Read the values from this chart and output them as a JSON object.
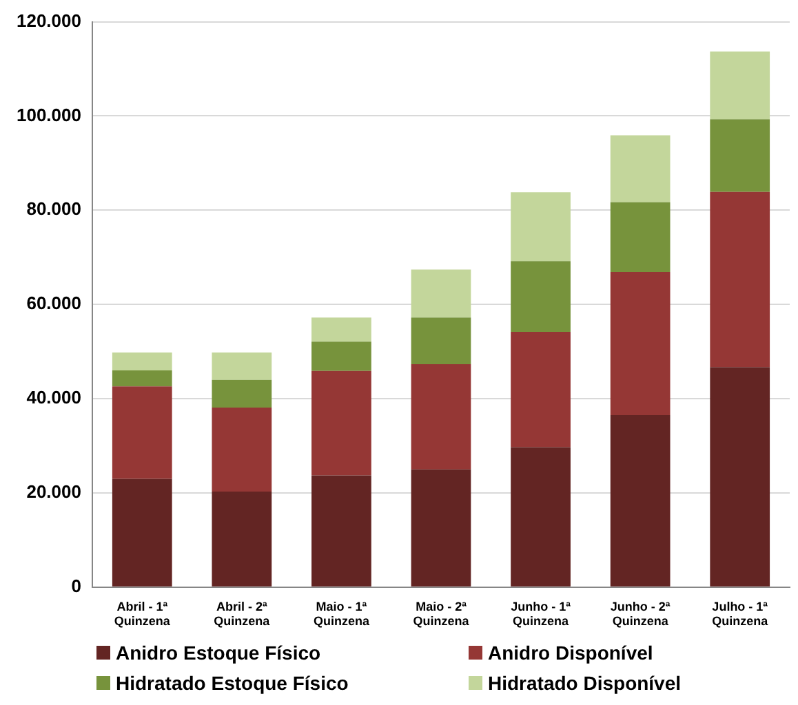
{
  "chart_data": {
    "type": "bar",
    "stacked": true,
    "categories": [
      "Abril - 1ª Quinzena",
      "Abril - 2ª Quinzena",
      "Maio - 1ª Quinzena",
      "Maio - 2ª Quinzena",
      "Junho - 1ª Quinzena",
      "Junho - 2ª Quinzena",
      "Julho - 1ª Quinzena"
    ],
    "series": [
      {
        "name": "Anidro Estoque Físico",
        "color": "#632523",
        "values": [
          23000,
          20300,
          23700,
          25000,
          29700,
          36500,
          46700
        ]
      },
      {
        "name": "Anidro Disponível",
        "color": "#953735",
        "values": [
          19600,
          17800,
          22200,
          22300,
          24500,
          30400,
          37200
        ]
      },
      {
        "name": "Hidratado Estoque Físico",
        "color": "#77933c",
        "values": [
          3400,
          5900,
          6200,
          9900,
          15000,
          14800,
          15400
        ]
      },
      {
        "name": "Hidratado Disponível",
        "color": "#c3d69b",
        "values": [
          3800,
          5800,
          5100,
          10200,
          14600,
          14200,
          14400
        ]
      }
    ],
    "ylim": [
      0,
      120000
    ],
    "yticks": [
      {
        "value": 0,
        "label": "0"
      },
      {
        "value": 20000,
        "label": "20.000"
      },
      {
        "value": 40000,
        "label": "40.000"
      },
      {
        "value": 60000,
        "label": "60.000"
      },
      {
        "value": 80000,
        "label": "80.000"
      },
      {
        "value": 100000,
        "label": "100.000"
      },
      {
        "value": 120000,
        "label": "120.000"
      }
    ],
    "grid": "y",
    "legend": "bottom"
  }
}
